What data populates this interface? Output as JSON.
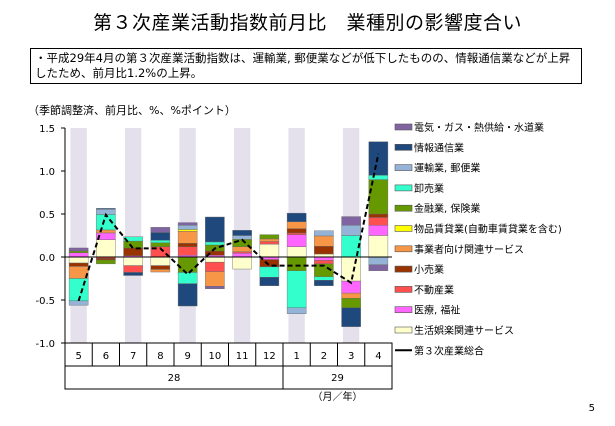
{
  "title": "第３次産業活動指数前月比　業種別の影響度合い",
  "summary": "・平成29年4月の第３次産業活動指数は、運輸業, 郵便業などが低下したものの、情報通信業などが上昇したため、前月比1.2%の上昇。",
  "page_number": "5",
  "chart_data": {
    "type": "bar",
    "stacked": true,
    "title": "",
    "ylabel": "（季節調整済、前月比、%、%ポイント）",
    "xlabel": "（月／年）",
    "ylim": [
      -1.0,
      1.5
    ],
    "yticks": [
      -1.0,
      -0.5,
      0.0,
      0.5,
      1.0,
      1.5
    ],
    "ytick_labels": [
      "-1.0",
      "-0.5",
      "0.0",
      "0.5",
      "1.0",
      "1.5"
    ],
    "categories": [
      "5",
      "6",
      "7",
      "8",
      "9",
      "10",
      "11",
      "12",
      "1",
      "2",
      "3",
      "4"
    ],
    "year_groups": [
      {
        "label": "28",
        "count": 8
      },
      {
        "label": "29",
        "count": 4
      }
    ],
    "legend_position": "right",
    "series": [
      {
        "name": "電気・ガス・熱供給・水道業",
        "color": "#8064a2",
        "values": [
          0.035,
          0,
          0,
          0.06,
          0.03,
          -0.03,
          0,
          0,
          0,
          0,
          0.1,
          -0.07
        ]
      },
      {
        "name": "情報通信業",
        "color": "#1f497d",
        "values": [
          0,
          0.01,
          -0.035,
          0.09,
          -0.26,
          0.29,
          0.06,
          -0.1,
          0.1,
          -0.065,
          -0.22,
          0.39
        ]
      },
      {
        "name": "運輸業, 郵便業",
        "color": "#95b3d7",
        "values": [
          -0.05,
          0.06,
          0,
          0,
          0.05,
          0,
          0.045,
          0,
          -0.07,
          0.06,
          0.12,
          -0.09
        ]
      },
      {
        "name": "卸売業",
        "color": "#33ffcc",
        "values": [
          -0.26,
          0.18,
          0.05,
          0.03,
          -0.13,
          0.035,
          0,
          -0.12,
          -0.43,
          -0.04,
          0.25,
          0.05
        ]
      },
      {
        "name": "金融業, 保険業",
        "color": "#669900",
        "values": [
          0.02,
          -0.045,
          0.08,
          0.045,
          -0.18,
          0.07,
          0.085,
          0.05,
          -0.16,
          -0.15,
          -0.11,
          0.4
        ]
      },
      {
        "name": "物品賃貸業(自動車賃貸業を含む)",
        "color": "#ffff00",
        "values": [
          0,
          0,
          0,
          0,
          0.02,
          0,
          0,
          0,
          0,
          0,
          0,
          0
        ]
      },
      {
        "name": "事業者向け関連サービス",
        "color": "#f79646",
        "values": [
          -0.14,
          0.035,
          0,
          -0.03,
          0.14,
          -0.17,
          0.06,
          0.03,
          0.08,
          0.12,
          -0.06,
          0
        ]
      },
      {
        "name": "小売業",
        "color": "#993300",
        "values": [
          -0.04,
          -0.02,
          0.09,
          -0.045,
          0.04,
          0.05,
          0,
          -0.085,
          0.05,
          0.09,
          0,
          0.04
        ]
      },
      {
        "name": "不動産業",
        "color": "#ff5050",
        "values": [
          0,
          -0.015,
          -0.08,
          0.12,
          0.1,
          -0.11,
          0.015,
          0.03,
          0.02,
          -0.04,
          0,
          0.09
        ]
      },
      {
        "name": "医療, 福祉",
        "color": "#ff66ff",
        "values": [
          0.05,
          0.08,
          0.015,
          0,
          0.02,
          0.02,
          0.045,
          -0.03,
          0.14,
          -0.04,
          -0.14,
          0.12
        ]
      },
      {
        "name": "生活娯楽関連サービス",
        "color": "#ffffcc",
        "values": [
          -0.07,
          0.2,
          -0.1,
          -0.1,
          0,
          -0.06,
          -0.14,
          0.15,
          0.12,
          0.035,
          -0.28,
          0.25
        ]
      }
    ],
    "total_line": {
      "name": "第３次産業総合",
      "color": "#000000",
      "values": [
        -0.51,
        0.49,
        0.1,
        0.1,
        -0.2,
        0.1,
        0.2,
        -0.1,
        -0.1,
        -0.1,
        -0.3,
        1.2
      ]
    },
    "band_color": "#e4e0ec"
  }
}
